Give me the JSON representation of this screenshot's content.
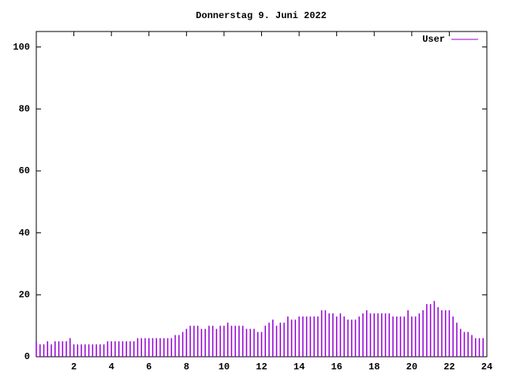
{
  "chart_data": {
    "type": "impulses",
    "title": "Donnerstag 9. Juni 2022",
    "x": [
      0,
      0.2,
      0.4,
      0.6,
      0.8,
      1,
      1.2,
      1.4,
      1.6,
      1.8,
      2,
      2.2,
      2.4,
      2.6,
      2.8,
      3,
      3.2,
      3.4,
      3.6,
      3.8,
      4,
      4.2,
      4.4,
      4.6,
      4.8,
      5,
      5.2,
      5.4,
      5.6,
      5.8,
      6,
      6.2,
      6.4,
      6.6,
      6.8,
      7,
      7.2,
      7.4,
      7.6,
      7.8,
      8,
      8.2,
      8.4,
      8.6,
      8.8,
      9,
      9.2,
      9.4,
      9.6,
      9.8,
      10,
      10.2,
      10.4,
      10.6,
      10.8,
      11,
      11.2,
      11.4,
      11.6,
      11.8,
      12,
      12.2,
      12.4,
      12.6,
      12.8,
      13,
      13.2,
      13.4,
      13.6,
      13.8,
      14,
      14.2,
      14.4,
      14.6,
      14.8,
      15,
      15.2,
      15.4,
      15.6,
      15.8,
      16,
      16.2,
      16.4,
      16.6,
      16.8,
      17,
      17.2,
      17.4,
      17.6,
      17.8,
      18,
      18.2,
      18.4,
      18.6,
      18.8,
      19,
      19.2,
      19.4,
      19.6,
      19.8,
      20,
      20.2,
      20.4,
      20.6,
      20.8,
      21,
      21.2,
      21.4,
      21.6,
      21.8,
      22,
      22.2,
      22.4,
      22.6,
      22.8,
      23,
      23.2,
      23.4,
      23.6,
      23.8
    ],
    "series": [
      {
        "name": "User",
        "color": "#9400d3",
        "values": [
          5,
          4,
          4,
          5,
          4,
          5,
          5,
          5,
          5,
          6,
          4,
          4,
          4,
          4,
          4,
          4,
          4,
          4,
          4,
          5,
          5,
          5,
          5,
          5,
          5,
          5,
          5,
          6,
          6,
          6,
          6,
          6,
          6,
          6,
          6,
          6,
          6,
          7,
          7,
          8,
          9,
          10,
          10,
          10,
          9,
          9,
          10,
          10,
          9,
          10,
          10,
          11,
          10,
          10,
          10,
          10,
          9,
          9,
          9,
          8,
          8,
          10,
          11,
          12,
          10,
          11,
          11,
          13,
          12,
          12,
          13,
          13,
          13,
          13,
          13,
          13,
          15,
          15,
          14,
          14,
          13,
          14,
          13,
          12,
          12,
          12,
          13,
          14,
          15,
          14,
          14,
          14,
          14,
          14,
          14,
          13,
          13,
          13,
          13,
          15,
          13,
          13,
          14,
          15,
          17,
          17,
          18,
          16,
          15,
          15,
          15,
          13,
          11,
          9,
          8,
          8,
          7,
          6,
          6,
          6
        ]
      }
    ],
    "xlim": [
      0,
      24
    ],
    "xticks": [
      2,
      4,
      6,
      8,
      10,
      12,
      14,
      16,
      18,
      20,
      22,
      24
    ],
    "ylim": [
      0,
      105
    ],
    "yticks": [
      0,
      20,
      40,
      60,
      80,
      100
    ],
    "legend": "top-right"
  }
}
